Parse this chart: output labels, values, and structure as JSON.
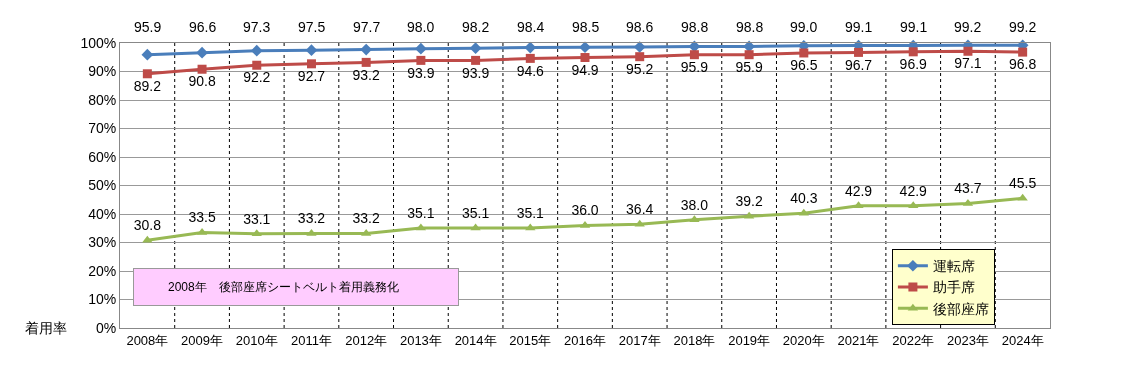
{
  "chart_data": {
    "type": "line",
    "categories": [
      "2008年",
      "2009年",
      "2010年",
      "2011年",
      "2012年",
      "2013年",
      "2014年",
      "2015年",
      "2016年",
      "2017年",
      "2018年",
      "2019年",
      "2020年",
      "2021年",
      "2022年",
      "2023年",
      "2024年"
    ],
    "series": [
      {
        "name": "運転席",
        "color": "#4a7ebb",
        "marker": "diamond",
        "values": [
          95.9,
          96.6,
          97.3,
          97.5,
          97.7,
          98.0,
          98.2,
          98.4,
          98.5,
          98.6,
          98.8,
          98.8,
          99.0,
          99.1,
          99.1,
          99.2,
          99.2
        ],
        "value_labels": [
          "95.9",
          "96.6",
          "97.3",
          "97.5",
          "97.7",
          "98.0",
          "98.2",
          "98.4",
          "98.5",
          "98.6",
          "98.8",
          "98.8",
          "99.0",
          "99.1",
          "99.1",
          "99.2",
          "99.2"
        ]
      },
      {
        "name": "助手席",
        "color": "#be4b48",
        "marker": "square",
        "values": [
          89.2,
          90.8,
          92.2,
          92.7,
          93.2,
          93.9,
          93.9,
          94.6,
          94.9,
          95.2,
          95.9,
          95.9,
          96.5,
          96.7,
          96.9,
          97.1,
          96.8
        ],
        "value_labels": [
          "89.2",
          "90.8",
          "92.2",
          "92.7",
          "93.2",
          "93.9",
          "93.9",
          "94.6",
          "94.9",
          "95.2",
          "95.9",
          "95.9",
          "96.5",
          "96.7",
          "96.9",
          "97.1",
          "96.8"
        ]
      },
      {
        "name": "後部座席",
        "color": "#98b954",
        "marker": "triangle",
        "values": [
          30.8,
          33.5,
          33.1,
          33.2,
          33.2,
          35.1,
          35.1,
          35.1,
          36.0,
          36.4,
          38.0,
          39.2,
          40.3,
          42.9,
          42.9,
          43.7,
          45.5
        ],
        "value_labels": [
          "30.8",
          "33.5",
          "33.1",
          "33.2",
          "33.2",
          "35.1",
          "35.1",
          "35.1",
          "36.0",
          "36.4",
          "38.0",
          "39.2",
          "40.3",
          "42.9",
          "42.9",
          "43.7",
          "45.5"
        ]
      }
    ],
    "ylabel": "着用率",
    "ylim": [
      0,
      100
    ],
    "yticks": [
      {
        "value": 0,
        "label": "0%"
      },
      {
        "value": 10,
        "label": "10%"
      },
      {
        "value": 20,
        "label": "20%"
      },
      {
        "value": 30,
        "label": "30%"
      },
      {
        "value": 40,
        "label": "40%"
      },
      {
        "value": 50,
        "label": "50%"
      },
      {
        "value": 60,
        "label": "60%"
      },
      {
        "value": 70,
        "label": "70%"
      },
      {
        "value": 80,
        "label": "80%"
      },
      {
        "value": 90,
        "label": "90%"
      },
      {
        "value": 100,
        "label": "100%"
      }
    ],
    "grid": true,
    "legend": "bottom right",
    "line_style": "solid",
    "annotations": [
      "2008年　後部座席シートベルト着用義務化"
    ]
  }
}
